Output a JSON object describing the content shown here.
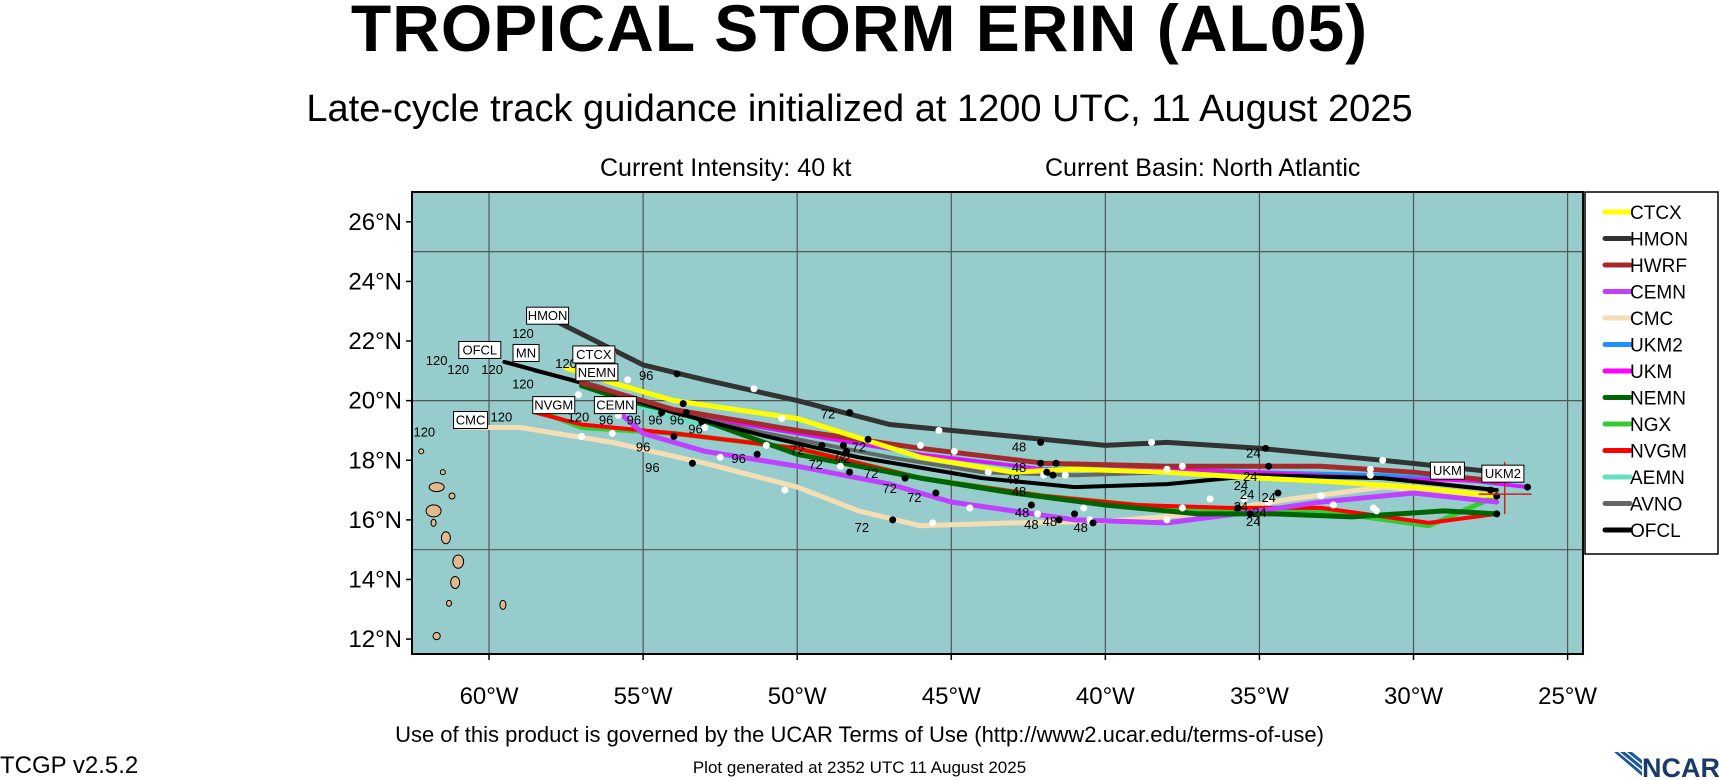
{
  "title": "TROPICAL STORM ERIN (AL05)",
  "subtitle": "Late-cycle track guidance initialized at 1200 UTC, 11 August 2025",
  "intensity": "Current Intensity: 40 kt",
  "basin": "Current Basin: North Atlantic",
  "terms": "Use of this product is governed by the UCAR Terms of Use (http://www2.ucar.edu/terms-of-use)",
  "version": "TCGP v2.5.2",
  "generated": "Plot generated at 2352 UTC   11 August 2025",
  "logo_text": "NCAR",
  "map": {
    "background": "#96cccc",
    "land": "#e2b88c",
    "lon_range": [
      -62.5,
      -24.5
    ],
    "lat_range": [
      11.5,
      27.0
    ],
    "lon_ticks": [
      {
        "v": -60,
        "label": "60°W"
      },
      {
        "v": -55,
        "label": "55°W"
      },
      {
        "v": -50,
        "label": "50°W"
      },
      {
        "v": -45,
        "label": "45°W"
      },
      {
        "v": -40,
        "label": "40°W"
      },
      {
        "v": -35,
        "label": "35°W"
      },
      {
        "v": -30,
        "label": "30°W"
      },
      {
        "v": -25,
        "label": "25°W"
      }
    ],
    "lat_ticks": [
      {
        "v": 26,
        "label": "26°N"
      },
      {
        "v": 24,
        "label": "24°N"
      },
      {
        "v": 22,
        "label": "22°N"
      },
      {
        "v": 20,
        "label": "20°N"
      },
      {
        "v": 18,
        "label": "18°N"
      },
      {
        "v": 16,
        "label": "16°N"
      },
      {
        "v": 14,
        "label": "14°N"
      },
      {
        "v": 12,
        "label": "12°N"
      }
    ],
    "grid_lons": [
      -60,
      -55,
      -50,
      -45,
      -40,
      -35,
      -30,
      -25
    ],
    "grid_lats": [
      25,
      20,
      15
    ]
  },
  "legend": [
    {
      "name": "CTCX",
      "color": "#ffff00"
    },
    {
      "name": "HMON",
      "color": "#333333"
    },
    {
      "name": "HWRF",
      "color": "#a52a2a"
    },
    {
      "name": "CEMN",
      "color": "#bf40ff"
    },
    {
      "name": "CMC",
      "color": "#f5deb3"
    },
    {
      "name": "UKM2",
      "color": "#1e90ff"
    },
    {
      "name": "UKM",
      "color": "#ff00ff"
    },
    {
      "name": "NEMN",
      "color": "#006400"
    },
    {
      "name": "NGX",
      "color": "#33cc33"
    },
    {
      "name": "NVGM",
      "color": "#ff0000"
    },
    {
      "name": "AEMN",
      "color": "#66e0c0"
    },
    {
      "name": "AVNO",
      "color": "#666666"
    },
    {
      "name": "OFCL",
      "color": "#000000"
    }
  ],
  "tracks": [
    {
      "name": "CMC",
      "color": "#f5deb3",
      "width": 5,
      "points": [
        [
          -27.3,
          16.8
        ],
        [
          -31,
          17.1
        ],
        [
          -34,
          16.7
        ],
        [
          -37,
          16.2
        ],
        [
          -40,
          15.95
        ],
        [
          -43,
          15.9
        ],
        [
          -46,
          15.8
        ],
        [
          -48,
          16.3
        ],
        [
          -50,
          17.1
        ],
        [
          -53,
          17.9
        ],
        [
          -56,
          18.6
        ],
        [
          -59,
          19.1
        ],
        [
          -61,
          19.1
        ]
      ]
    },
    {
      "name": "NGX",
      "color": "#33cc33",
      "width": 5,
      "points": [
        [
          -27.3,
          16.8
        ],
        [
          -29.5,
          15.8
        ],
        [
          -33,
          16.3
        ],
        [
          -36,
          16.3
        ],
        [
          -39,
          16.5
        ],
        [
          -42,
          16.8
        ],
        [
          -46,
          17.4
        ],
        [
          -50,
          18.4
        ],
        [
          -54,
          18.9
        ],
        [
          -57,
          19.1
        ],
        [
          -58.5,
          19.7
        ]
      ]
    },
    {
      "name": "NVGM",
      "color": "#ff0000",
      "width": 4,
      "points": [
        [
          -27.3,
          16.2
        ],
        [
          -29.5,
          15.9
        ],
        [
          -33,
          16.4
        ],
        [
          -36,
          16.4
        ],
        [
          -39,
          16.5
        ],
        [
          -42,
          16.8
        ],
        [
          -46,
          17.4
        ],
        [
          -50,
          18.4
        ],
        [
          -54,
          18.9
        ],
        [
          -57,
          19.2
        ],
        [
          -58.5,
          19.6
        ]
      ]
    },
    {
      "name": "AEMN",
      "color": "#66e0c0",
      "width": 4,
      "points": [
        [
          -27.3,
          17.0
        ],
        [
          -31,
          17.4
        ],
        [
          -35,
          17.6
        ],
        [
          -38,
          17.8
        ],
        [
          -42,
          17.7
        ],
        [
          -46,
          18.0
        ],
        [
          -50,
          18.6
        ],
        [
          -54,
          19.4
        ],
        [
          -57,
          20.5
        ]
      ]
    },
    {
      "name": "CEMN",
      "color": "#bf40ff",
      "width": 5,
      "points": [
        [
          -27.3,
          16.6
        ],
        [
          -30,
          16.9
        ],
        [
          -33,
          16.6
        ],
        [
          -35,
          16.3
        ],
        [
          -38,
          15.9
        ],
        [
          -41,
          16.0
        ],
        [
          -43,
          16.3
        ],
        [
          -45,
          16.6
        ],
        [
          -47,
          17.2
        ],
        [
          -50,
          17.8
        ],
        [
          -53,
          18.3
        ],
        [
          -55,
          18.9
        ],
        [
          -56,
          19.8
        ]
      ]
    },
    {
      "name": "UKM2",
      "color": "#1e90ff",
      "width": 4,
      "points": [
        [
          -26.3,
          17.1
        ],
        [
          -28,
          17.3
        ],
        [
          -31,
          17.5
        ],
        [
          -35,
          17.6
        ],
        [
          -38,
          17.7
        ],
        [
          -42,
          17.7
        ],
        [
          -46,
          18.2
        ],
        [
          -50,
          18.9
        ],
        [
          -54,
          19.6
        ],
        [
          -57,
          20.6
        ]
      ]
    },
    {
      "name": "UKM",
      "color": "#ff00ff",
      "width": 3,
      "points": [
        [
          -26.3,
          17.1
        ],
        [
          -28,
          17.3
        ],
        [
          -31,
          17.4
        ],
        [
          -35,
          17.6
        ],
        [
          -38,
          17.7
        ],
        [
          -42,
          17.7
        ],
        [
          -46,
          18.2
        ],
        [
          -50,
          18.9
        ],
        [
          -54,
          19.6
        ],
        [
          -57,
          20.5
        ]
      ]
    },
    {
      "name": "NEMN",
      "color": "#006400",
      "width": 5,
      "points": [
        [
          -27.3,
          16.2
        ],
        [
          -29,
          16.3
        ],
        [
          -32,
          16.1
        ],
        [
          -34.5,
          16.2
        ],
        [
          -37,
          16.2
        ],
        [
          -40,
          16.5
        ],
        [
          -43,
          16.9
        ],
        [
          -46,
          17.4
        ],
        [
          -50,
          18.2
        ],
        [
          -53.5,
          19.5
        ],
        [
          -55.5,
          20.0
        ],
        [
          -57,
          20.5
        ]
      ]
    },
    {
      "name": "AVNO",
      "color": "#666666",
      "width": 4,
      "points": [
        [
          -27.3,
          17.0
        ],
        [
          -31,
          17.4
        ],
        [
          -35,
          17.5
        ],
        [
          -38,
          17.6
        ],
        [
          -41,
          17.5
        ],
        [
          -44,
          17.6
        ],
        [
          -47,
          18.1
        ],
        [
          -51,
          18.9
        ],
        [
          -54,
          19.6
        ],
        [
          -56.5,
          20.5
        ],
        [
          -58.5,
          21.0
        ]
      ]
    },
    {
      "name": "OFCL",
      "color": "#000000",
      "width": 4,
      "points": [
        [
          -27.3,
          17.0
        ],
        [
          -31,
          17.4
        ],
        [
          -35,
          17.5
        ],
        [
          -38,
          17.2
        ],
        [
          -41,
          17.1
        ],
        [
          -44,
          17.4
        ],
        [
          -48,
          18.1
        ],
        [
          -51,
          18.8
        ],
        [
          -54,
          19.6
        ],
        [
          -57,
          20.6
        ],
        [
          -59.5,
          21.3
        ]
      ]
    },
    {
      "name": "HWRF",
      "color": "#a52a2a",
      "width": 5,
      "points": [
        [
          -27.3,
          17.3
        ],
        [
          -30,
          17.6
        ],
        [
          -33,
          17.8
        ],
        [
          -35,
          17.8
        ],
        [
          -38,
          17.8
        ],
        [
          -42,
          17.9
        ],
        [
          -46,
          18.4
        ],
        [
          -50,
          19.0
        ],
        [
          -54,
          19.7
        ],
        [
          -57,
          20.6
        ]
      ]
    },
    {
      "name": "CTCX",
      "color": "#ffff00",
      "width": 5,
      "points": [
        [
          -27.3,
          16.8
        ],
        [
          -30,
          17.1
        ],
        [
          -33,
          17.3
        ],
        [
          -35,
          17.4
        ],
        [
          -38,
          17.6
        ],
        [
          -41,
          17.7
        ],
        [
          -43,
          17.6
        ],
        [
          -46,
          18.1
        ],
        [
          -50,
          19.4
        ],
        [
          -54,
          20.0
        ],
        [
          -56,
          20.6
        ],
        [
          -57.5,
          21.1
        ]
      ]
    },
    {
      "name": "HMON",
      "color": "#333333",
      "width": 5,
      "points": [
        [
          -27.3,
          17.6
        ],
        [
          -31,
          18.0
        ],
        [
          -35,
          18.4
        ],
        [
          -38,
          18.6
        ],
        [
          -40,
          18.5
        ],
        [
          -44,
          18.9
        ],
        [
          -47,
          19.2
        ],
        [
          -50,
          20.0
        ],
        [
          -53,
          20.7
        ],
        [
          -55,
          21.2
        ],
        [
          -57.7,
          22.6
        ]
      ]
    }
  ],
  "white_dots": [
    [
      -56,
      21.6
    ],
    [
      -51.4,
      20.4
    ],
    [
      -45.4,
      19.0
    ],
    [
      -38.5,
      18.6
    ],
    [
      -31,
      18.0
    ],
    [
      -55.5,
      20.7
    ],
    [
      -50.5,
      19.4
    ],
    [
      -46,
      18.5
    ],
    [
      -42,
      17.5
    ],
    [
      -31.4,
      17.7
    ],
    [
      -31.4,
      17.5
    ],
    [
      -38,
      17.7
    ],
    [
      -37.5,
      17.8
    ],
    [
      -44.4,
      16.4
    ],
    [
      -42.2,
      16.2
    ],
    [
      -40.7,
      16.4
    ],
    [
      -45.6,
      15.9
    ],
    [
      -40.5,
      16.0
    ],
    [
      -38,
      16.0
    ],
    [
      -37.5,
      16.4
    ],
    [
      -35.5,
      16.7
    ],
    [
      -33,
      16.8
    ],
    [
      -31.3,
      16.4
    ],
    [
      -31.2,
      16.3
    ],
    [
      -32.6,
      16.5
    ],
    [
      -50.4,
      17.0
    ],
    [
      -52.5,
      18.1
    ],
    [
      -56,
      18.9
    ],
    [
      -57,
      18.8
    ],
    [
      -53,
      19.1
    ],
    [
      -51,
      18.5
    ],
    [
      -48.6,
      17.8
    ],
    [
      -55.8,
      19.5
    ],
    [
      -57.1,
      20.2
    ],
    [
      -34.7,
      16.6
    ],
    [
      -36.6,
      16.7
    ],
    [
      -41.3,
      17.5
    ],
    [
      -43.8,
      17.6
    ],
    [
      -44.9,
      18.3
    ]
  ],
  "black_dots": [
    [
      -53.9,
      20.9
    ],
    [
      -48.3,
      19.6
    ],
    [
      -42.1,
      18.6
    ],
    [
      -34.8,
      18.4
    ],
    [
      -27.3,
      16.8
    ],
    [
      -27.3,
      16.2
    ],
    [
      -26.3,
      17.1
    ],
    [
      -27.5,
      17.0
    ],
    [
      -46.5,
      17.4
    ],
    [
      -48.3,
      17.6
    ],
    [
      -46.9,
      16.0
    ],
    [
      -45.5,
      16.9
    ],
    [
      -40.4,
      15.9
    ],
    [
      -41,
      16.2
    ],
    [
      -41.5,
      16.0
    ],
    [
      -42.4,
      16.5
    ],
    [
      -41.7,
      17.5
    ],
    [
      -41.9,
      17.6
    ],
    [
      -42.1,
      17.9
    ],
    [
      -41.6,
      17.9
    ],
    [
      -35.7,
      16.4
    ],
    [
      -35.3,
      16.2
    ],
    [
      -34.4,
      16.9
    ],
    [
      -34.7,
      17.8
    ],
    [
      -53.1,
      19.3
    ],
    [
      -54,
      18.8
    ],
    [
      -53.4,
      17.9
    ],
    [
      -51.3,
      18.2
    ],
    [
      -48.4,
      18.3
    ],
    [
      -47.7,
      18.7
    ],
    [
      -48.5,
      18.5
    ],
    [
      -49.2,
      18.5
    ],
    [
      -53.6,
      19.6
    ],
    [
      -54.4,
      19.6
    ],
    [
      -53.7,
      19.9
    ]
  ],
  "hour_labels": [
    {
      "t": "120",
      "lon": -58.9,
      "lat": 22.1
    },
    {
      "t": "96",
      "lon": -54.9,
      "lat": 20.7
    },
    {
      "t": "72",
      "lon": -49.0,
      "lat": 19.4
    },
    {
      "t": "48",
      "lon": -42.8,
      "lat": 18.3
    },
    {
      "t": "24",
      "lon": -35.2,
      "lat": 18.1
    },
    {
      "t": "120",
      "lon": -61.7,
      "lat": 21.2
    },
    {
      "t": "120",
      "lon": -61.0,
      "lat": 20.9
    },
    {
      "t": "120",
      "lon": -59.9,
      "lat": 20.9
    },
    {
      "t": "120",
      "lon": -57.5,
      "lat": 21.1
    },
    {
      "t": "120",
      "lon": -58.9,
      "lat": 20.4
    },
    {
      "t": "120",
      "lon": -59.6,
      "lat": 19.3
    },
    {
      "t": "120",
      "lon": -57.1,
      "lat": 19.3
    },
    {
      "t": "120",
      "lon": -62.1,
      "lat": 18.8
    },
    {
      "t": "96",
      "lon": -56.2,
      "lat": 19.2
    },
    {
      "t": "96",
      "lon": -55.3,
      "lat": 19.2
    },
    {
      "t": "96",
      "lon": -54.6,
      "lat": 19.2
    },
    {
      "t": "96",
      "lon": -53.9,
      "lat": 19.2
    },
    {
      "t": "96",
      "lon": -53.3,
      "lat": 18.9
    },
    {
      "t": "96",
      "lon": -55.0,
      "lat": 18.3
    },
    {
      "t": "96",
      "lon": -51.9,
      "lat": 17.9
    },
    {
      "t": "96",
      "lon": -54.7,
      "lat": 17.6
    },
    {
      "t": "72",
      "lon": -50.0,
      "lat": 18.2
    },
    {
      "t": "72",
      "lon": -49.4,
      "lat": 17.7
    },
    {
      "t": "72",
      "lon": -48.5,
      "lat": 17.9
    },
    {
      "t": "72",
      "lon": -47.6,
      "lat": 17.4
    },
    {
      "t": "72",
      "lon": -47.0,
      "lat": 16.9
    },
    {
      "t": "72",
      "lon": -46.2,
      "lat": 16.6
    },
    {
      "t": "72",
      "lon": -48.6,
      "lat": 18.0
    },
    {
      "t": "72",
      "lon": -48.0,
      "lat": 18.3
    },
    {
      "t": "72",
      "lon": -47.9,
      "lat": 15.6
    },
    {
      "t": "48",
      "lon": -42.8,
      "lat": 17.6
    },
    {
      "t": "48",
      "lon": -43.0,
      "lat": 17.2
    },
    {
      "t": "48",
      "lon": -42.8,
      "lat": 16.8
    },
    {
      "t": "48",
      "lon": -42.7,
      "lat": 16.1
    },
    {
      "t": "48",
      "lon": -42.4,
      "lat": 15.7
    },
    {
      "t": "48",
      "lon": -41.8,
      "lat": 15.8
    },
    {
      "t": "48",
      "lon": -40.8,
      "lat": 15.6
    },
    {
      "t": "24",
      "lon": -35.3,
      "lat": 17.3
    },
    {
      "t": "24",
      "lon": -35.6,
      "lat": 17.0
    },
    {
      "t": "24",
      "lon": -35.4,
      "lat": 16.7
    },
    {
      "t": "24",
      "lon": -34.7,
      "lat": 16.6
    },
    {
      "t": "24",
      "lon": -35.0,
      "lat": 16.1
    },
    {
      "t": "24",
      "lon": -35.2,
      "lat": 15.8
    },
    {
      "t": "24",
      "lon": -35.6,
      "lat": 16.3
    }
  ],
  "model_boxes": [
    {
      "t": "HMON",
      "lon": -58.1,
      "lat": 22.85
    },
    {
      "t": "OFCL",
      "lon": -60.3,
      "lat": 21.7
    },
    {
      "t": "MN",
      "lon": -58.8,
      "lat": 21.6
    },
    {
      "t": "CTCX",
      "lon": -56.6,
      "lat": 21.55
    },
    {
      "t": "NEMN",
      "lon": -56.5,
      "lat": 20.95
    },
    {
      "t": "NVGM",
      "lon": -57.9,
      "lat": 19.85
    },
    {
      "t": "CEMN",
      "lon": -55.9,
      "lat": 19.85
    },
    {
      "t": "CMC",
      "lon": -60.6,
      "lat": 19.35
    },
    {
      "t": "UKM",
      "lon": -28.9,
      "lat": 17.65
    },
    {
      "t": "UKM2",
      "lon": -27.1,
      "lat": 17.55
    }
  ]
}
